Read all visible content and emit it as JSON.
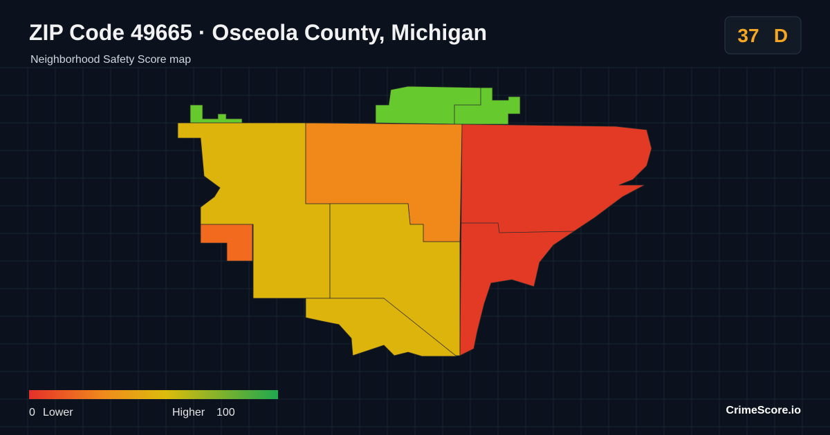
{
  "header": {
    "title": "ZIP Code 49665 · Osceola County, Michigan",
    "subtitle": "Neighborhood Safety Score map"
  },
  "badge": {
    "score": 37,
    "grade": "D"
  },
  "legend": {
    "min": 0,
    "min_label": "Lower",
    "max_label": "Higher",
    "max": 100
  },
  "brand": "CrimeScore.io"
}
